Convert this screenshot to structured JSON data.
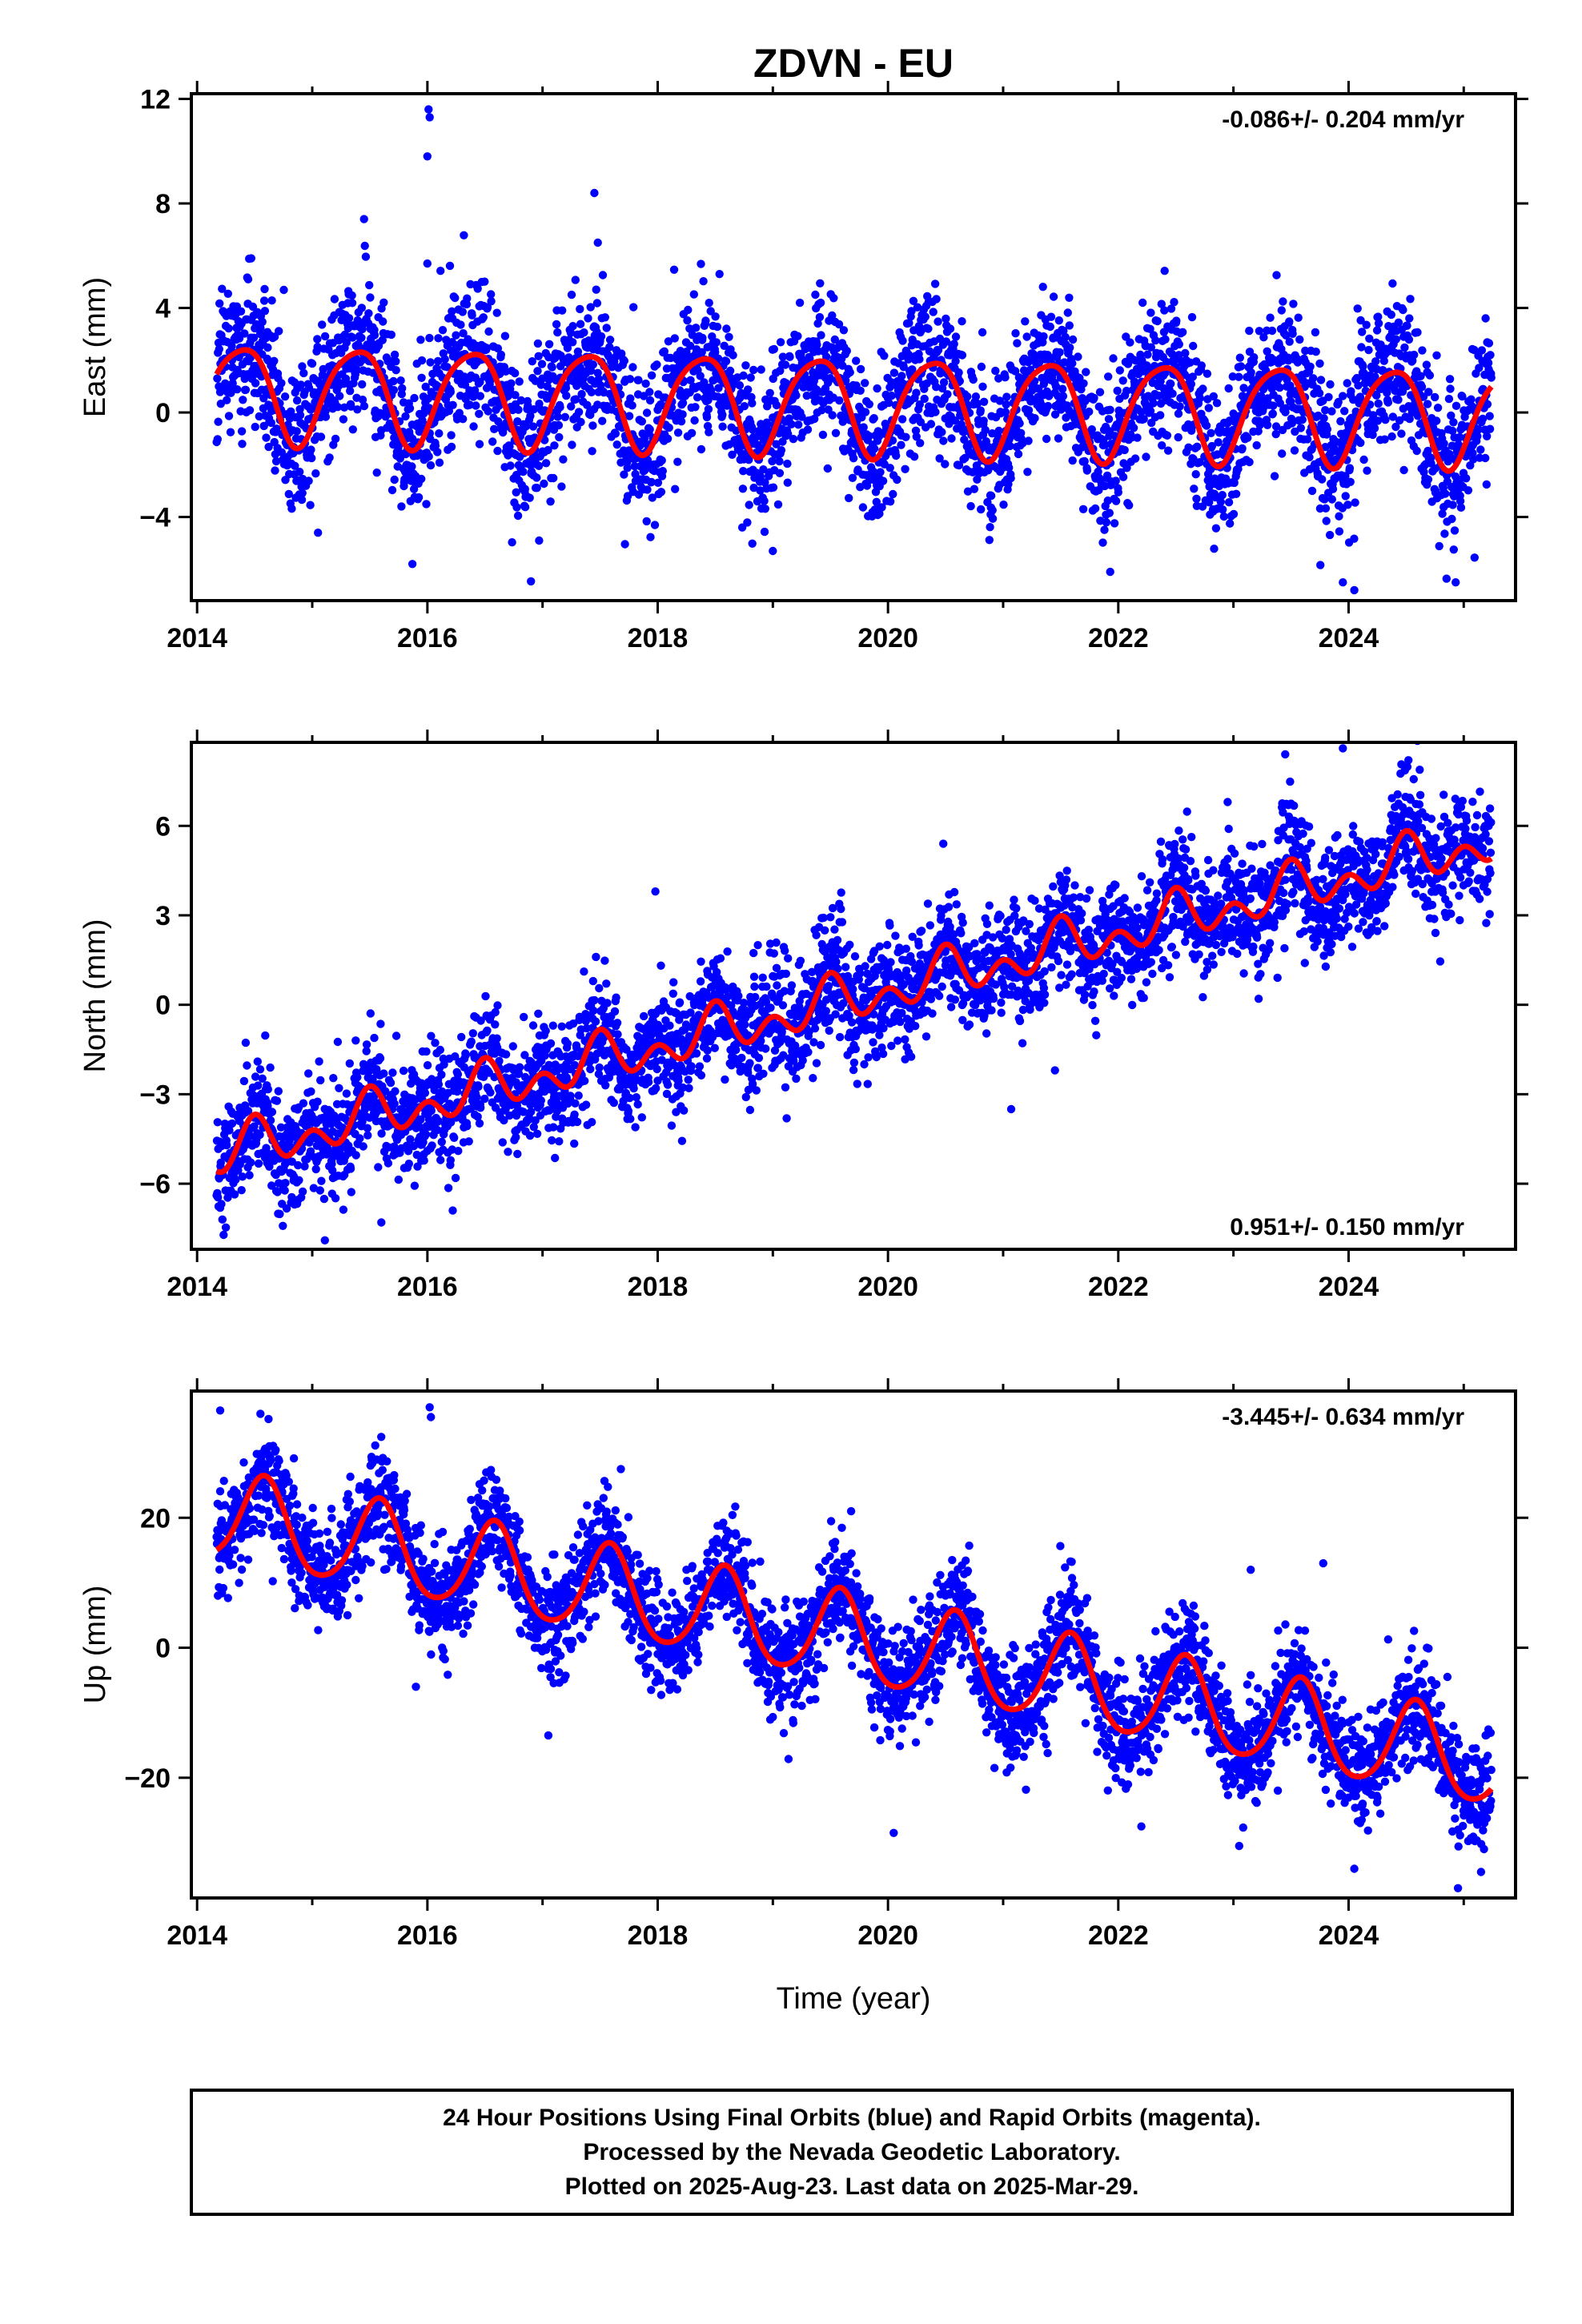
{
  "figure": {
    "title": "ZDVN - EU",
    "xlabel": "Time (year)",
    "footer": [
      "24 Hour Positions Using Final Orbits (blue) and Rapid Orbits (magenta).",
      "Processed by the Nevada Geodetic Laboratory.",
      "Plotted on 2025-Aug-23. Last data on 2025-Mar-29."
    ],
    "colors": {
      "points": "#0000ff",
      "model": "#ff0000",
      "frame": "#000000"
    }
  },
  "chart_data": [
    {
      "type": "scatter",
      "ylabel": "East (mm)",
      "rate_text": "-0.086+/- 0.204 mm/yr",
      "rate_position": "top-right",
      "xlim": [
        2013.95,
        2025.45
      ],
      "ylim": [
        -7.2,
        12.2
      ],
      "xticks": [
        2014,
        2016,
        2018,
        2020,
        2022,
        2024
      ],
      "yticks": [
        -4,
        0,
        4,
        8,
        12
      ],
      "grid": false,
      "x_start": 2014.17,
      "x_end": 2025.24,
      "trend": {
        "slope": -0.086,
        "intercept_2019": 0.4
      },
      "seasonal": {
        "annual_amplitude": 1.85,
        "annual_peak": 0.38,
        "semiannual_amplitude": 0.3,
        "semiannual_peak": 0.1
      },
      "scatter_sd": 1.4,
      "outliers": [
        [
          2016.01,
          11.6
        ],
        [
          2016.02,
          11.3
        ],
        [
          2016.0,
          9.8
        ],
        [
          2016.0,
          5.7
        ],
        [
          2017.45,
          8.4
        ],
        [
          2017.48,
          6.5
        ],
        [
          2015.45,
          7.4
        ],
        [
          2014.47,
          5.9
        ],
        [
          2015.87,
          -5.8
        ],
        [
          2021.93,
          -6.1
        ],
        [
          2023.95,
          -6.5
        ],
        [
          2024.05,
          -6.8
        ],
        [
          2024.93,
          -6.5
        ],
        [
          2019.0,
          -5.3
        ],
        [
          2016.97,
          -4.9
        ],
        [
          2015.05,
          -4.6
        ]
      ]
    },
    {
      "type": "scatter",
      "ylabel": "North (mm)",
      "rate_text": "0.951+/- 0.150 mm/yr",
      "rate_position": "bottom-right",
      "xlim": [
        2013.95,
        2025.45
      ],
      "ylim": [
        -8.2,
        8.8
      ],
      "xticks": [
        2014,
        2016,
        2018,
        2020,
        2022,
        2024
      ],
      "yticks": [
        -6,
        -3,
        0,
        3,
        6
      ],
      "grid": false,
      "x_start": 2014.17,
      "x_end": 2025.24,
      "trend": {
        "slope": 0.951,
        "intercept_2019": -0.45
      },
      "seasonal": {
        "annual_amplitude": 0.5,
        "annual_peak": 0.5,
        "semiannual_amplitude": 0.55,
        "semiannual_peak": 0.0
      },
      "scatter_sd": 0.95,
      "outliers": [
        [
          2017.98,
          3.8
        ],
        [
          2020.48,
          5.4
        ],
        [
          2023.95,
          8.6
        ],
        [
          2024.52,
          8.2
        ],
        [
          2023.45,
          8.4
        ],
        [
          2015.11,
          -7.9
        ],
        [
          2016.22,
          -6.9
        ],
        [
          2014.22,
          -7.2
        ],
        [
          2015.6,
          -7.3
        ],
        [
          2021.07,
          -3.5
        ],
        [
          2021.45,
          -2.2
        ],
        [
          2018.87,
          2.0
        ],
        [
          2022.95,
          6.8
        ],
        [
          2023.62,
          1.4
        ],
        [
          2024.2,
          2.6
        ]
      ]
    },
    {
      "type": "scatter",
      "ylabel": "Up (mm)",
      "rate_text": "-3.445+/- 0.634 mm/yr",
      "rate_position": "top-right",
      "xlim": [
        2013.95,
        2025.45
      ],
      "ylim": [
        -38.5,
        39.5
      ],
      "xticks": [
        2014,
        2016,
        2018,
        2020,
        2022,
        2024
      ],
      "yticks": [
        -20,
        0,
        20
      ],
      "grid": false,
      "x_start": 2014.17,
      "x_end": 2025.24,
      "trend": {
        "slope": -3.445,
        "intercept_2019": 3.6
      },
      "seasonal": {
        "annual_amplitude": 6.8,
        "annual_peak": 0.58,
        "semiannual_amplitude": 0.9,
        "semiannual_peak": 0.1
      },
      "scatter_sd": 4.2,
      "outliers": [
        [
          2014.2,
          36.5
        ],
        [
          2014.55,
          36.0
        ],
        [
          2014.62,
          35.2
        ],
        [
          2016.02,
          37.0
        ],
        [
          2016.03,
          35.5
        ],
        [
          2015.9,
          -6.0
        ],
        [
          2017.05,
          -13.5
        ],
        [
          2020.05,
          -28.5
        ],
        [
          2022.2,
          -27.5
        ],
        [
          2023.05,
          -30.5
        ],
        [
          2024.05,
          -34.0
        ],
        [
          2024.95,
          -37.0
        ],
        [
          2025.15,
          -34.5
        ],
        [
          2019.68,
          21.0
        ],
        [
          2017.68,
          27.5
        ],
        [
          2018.6,
          18.0
        ],
        [
          2023.15,
          12.0
        ],
        [
          2023.78,
          13.0
        ]
      ]
    }
  ]
}
